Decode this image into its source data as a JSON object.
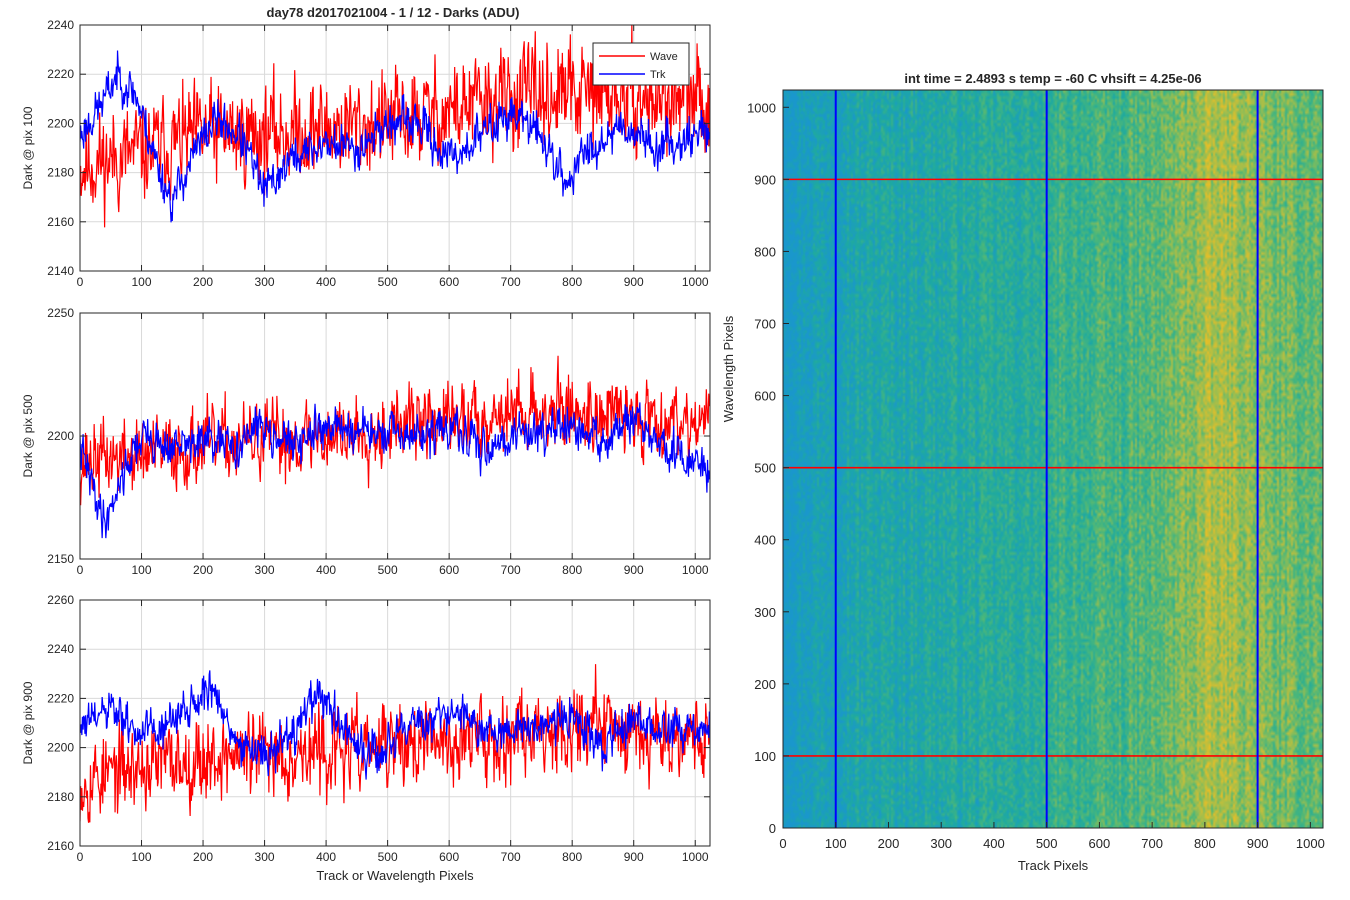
{
  "figure_title": "day78 d2017021004 - 1 / 12 - Darks (ADU)",
  "colors": {
    "wave": "#ff0000",
    "trk": "#0000ff",
    "grid": "#d9d9d9",
    "axis": "#262626"
  },
  "chart_data": [
    {
      "type": "line",
      "ylabel": "Dark @ pix 100",
      "xlabel": "",
      "xlim": [
        0,
        1024
      ],
      "ylim": [
        2140,
        2240
      ],
      "xticks": [
        0,
        100,
        200,
        300,
        400,
        500,
        600,
        700,
        800,
        900,
        1000
      ],
      "yticks": [
        2140,
        2160,
        2180,
        2200,
        2220,
        2240
      ],
      "grid": true,
      "legend": {
        "placement": "top-right",
        "entries": [
          "Wave",
          "Trk"
        ]
      },
      "series": [
        {
          "name": "Wave",
          "color": "#ff0000",
          "trend": [
            [
              0,
              2183
            ],
            [
              100,
              2188
            ],
            [
              200,
              2195
            ],
            [
              300,
              2196
            ],
            [
              400,
              2198
            ],
            [
              500,
              2200
            ],
            [
              600,
              2205
            ],
            [
              700,
              2210
            ],
            [
              800,
              2212
            ],
            [
              900,
              2210
            ],
            [
              1024,
              2208
            ]
          ],
          "noise": 12,
          "seed": 11
        },
        {
          "name": "Trk",
          "color": "#0000ff",
          "trend": [
            [
              0,
              2195
            ],
            [
              40,
              2210
            ],
            [
              60,
              2220
            ],
            [
              90,
              2212
            ],
            [
              130,
              2180
            ],
            [
              150,
              2168
            ],
            [
              180,
              2185
            ],
            [
              220,
              2202
            ],
            [
              260,
              2195
            ],
            [
              300,
              2172
            ],
            [
              340,
              2185
            ],
            [
              400,
              2192
            ],
            [
              450,
              2190
            ],
            [
              500,
              2200
            ],
            [
              550,
              2200
            ],
            [
              600,
              2185
            ],
            [
              650,
              2195
            ],
            [
              700,
              2205
            ],
            [
              750,
              2195
            ],
            [
              790,
              2175
            ],
            [
              820,
              2188
            ],
            [
              880,
              2200
            ],
            [
              940,
              2190
            ],
            [
              1024,
              2198
            ]
          ],
          "noise": 5,
          "seed": 23
        }
      ]
    },
    {
      "type": "line",
      "ylabel": "Dark @ pix 500",
      "xlabel": "",
      "xlim": [
        0,
        1024
      ],
      "ylim": [
        2150,
        2250
      ],
      "xticks": [
        0,
        100,
        200,
        300,
        400,
        500,
        600,
        700,
        800,
        900,
        1000
      ],
      "yticks": [
        2150,
        2200,
        2250
      ],
      "grid": true,
      "series": [
        {
          "name": "Wave",
          "color": "#ff0000",
          "trend": [
            [
              0,
              2190
            ],
            [
              100,
              2192
            ],
            [
              200,
              2196
            ],
            [
              300,
              2198
            ],
            [
              400,
              2200
            ],
            [
              500,
              2204
            ],
            [
              600,
              2206
            ],
            [
              700,
              2210
            ],
            [
              800,
              2210
            ],
            [
              900,
              2208
            ],
            [
              1024,
              2207
            ]
          ],
          "noise": 9,
          "seed": 37
        },
        {
          "name": "Trk",
          "color": "#0000ff",
          "trend": [
            [
              0,
              2195
            ],
            [
              20,
              2180
            ],
            [
              40,
              2165
            ],
            [
              70,
              2185
            ],
            [
              100,
              2200
            ],
            [
              150,
              2195
            ],
            [
              200,
              2198
            ],
            [
              250,
              2195
            ],
            [
              300,
              2205
            ],
            [
              350,
              2195
            ],
            [
              400,
              2205
            ],
            [
              450,
              2202
            ],
            [
              500,
              2200
            ],
            [
              550,
              2200
            ],
            [
              600,
              2203
            ],
            [
              650,
              2195
            ],
            [
              700,
              2200
            ],
            [
              750,
              2203
            ],
            [
              800,
              2202
            ],
            [
              850,
              2198
            ],
            [
              900,
              2206
            ],
            [
              950,
              2195
            ],
            [
              1024,
              2185
            ]
          ],
          "noise": 5,
          "seed": 41
        }
      ]
    },
    {
      "type": "line",
      "ylabel": "Dark @ pix 900",
      "xlabel": "Track or Wavelength Pixels",
      "xlim": [
        0,
        1024
      ],
      "ylim": [
        2160,
        2260
      ],
      "xticks": [
        0,
        100,
        200,
        300,
        400,
        500,
        600,
        700,
        800,
        900,
        1000
      ],
      "yticks": [
        2160,
        2180,
        2200,
        2220,
        2240,
        2260
      ],
      "grid": true,
      "series": [
        {
          "name": "Wave",
          "color": "#ff0000",
          "trend": [
            [
              0,
              2187
            ],
            [
              100,
              2192
            ],
            [
              200,
              2196
            ],
            [
              300,
              2198
            ],
            [
              400,
              2198
            ],
            [
              500,
              2200
            ],
            [
              600,
              2202
            ],
            [
              700,
              2206
            ],
            [
              800,
              2210
            ],
            [
              900,
              2208
            ],
            [
              1024,
              2205
            ]
          ],
          "noise": 10,
          "seed": 53
        },
        {
          "name": "Trk",
          "color": "#0000ff",
          "trend": [
            [
              0,
              2208
            ],
            [
              50,
              2215
            ],
            [
              100,
              2205
            ],
            [
              150,
              2210
            ],
            [
              210,
              2225
            ],
            [
              260,
              2200
            ],
            [
              300,
              2198
            ],
            [
              340,
              2205
            ],
            [
              390,
              2222
            ],
            [
              450,
              2200
            ],
            [
              480,
              2195
            ],
            [
              540,
              2210
            ],
            [
              590,
              2215
            ],
            [
              650,
              2210
            ],
            [
              700,
              2205
            ],
            [
              750,
              2210
            ],
            [
              800,
              2212
            ],
            [
              850,
              2200
            ],
            [
              900,
              2210
            ],
            [
              950,
              2208
            ],
            [
              1024,
              2206
            ]
          ],
          "noise": 5,
          "seed": 61
        }
      ]
    },
    {
      "type": "heatmap",
      "title": "int time = 2.4893 s    temp = -60 C    vhsift = 4.25e-06",
      "xlabel": "Track Pixels",
      "ylabel": "Wavelength Pixels",
      "xlim": [
        0,
        1024
      ],
      "ylim": [
        0,
        1024
      ],
      "xticks": [
        0,
        100,
        200,
        300,
        400,
        500,
        600,
        700,
        800,
        900,
        1000
      ],
      "yticks": [
        0,
        100,
        200,
        300,
        400,
        500,
        600,
        700,
        800,
        900,
        1000
      ],
      "colormap": "parula",
      "vertical_lines": {
        "color": "#0000ff",
        "x": [
          100,
          500,
          900
        ]
      },
      "horizontal_lines": {
        "color": "#ff0000",
        "y": [
          100,
          500,
          900
        ]
      }
    }
  ]
}
